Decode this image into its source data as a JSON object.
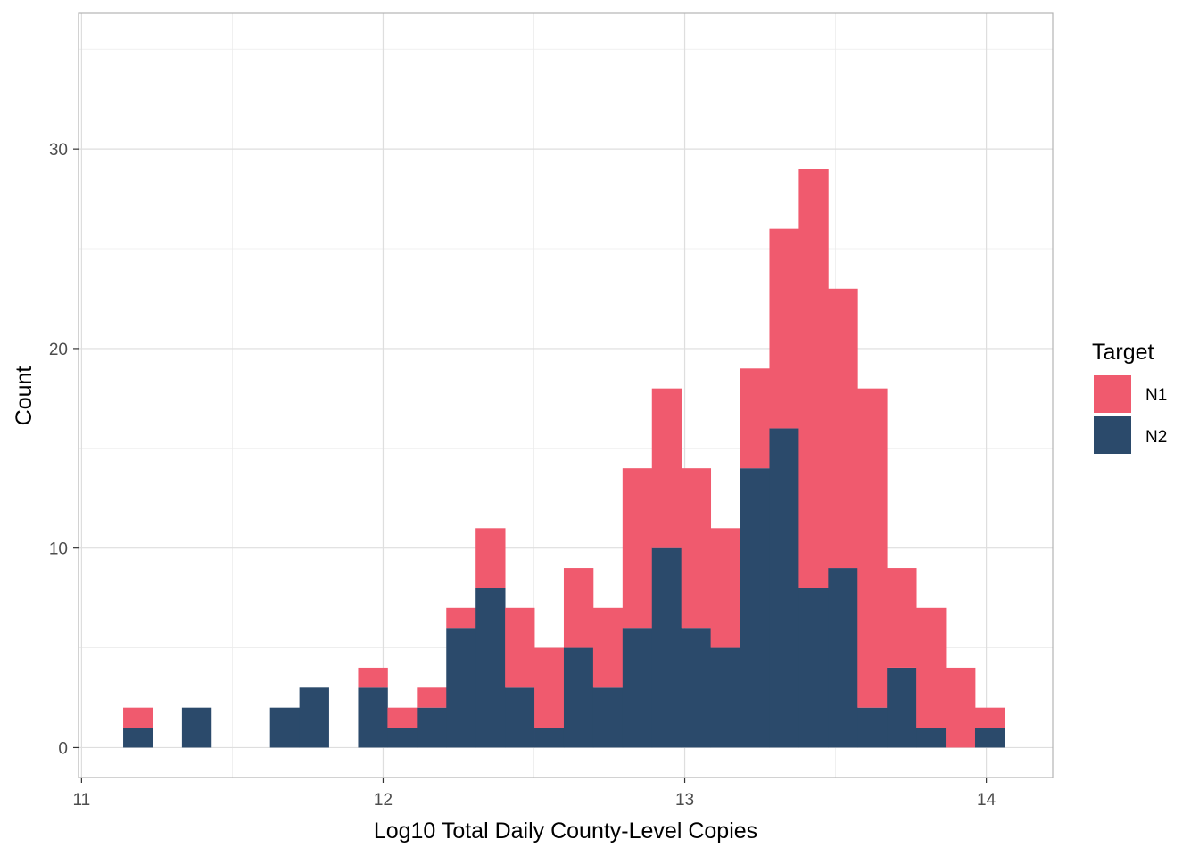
{
  "chart_data": {
    "type": "bar",
    "subtype": "stacked-histogram",
    "xlabel": "Log10 Total Daily County-Level Copies",
    "ylabel": "Count",
    "xlim": [
      10.99,
      14.22
    ],
    "ylim": [
      -1.5,
      36.8
    ],
    "x_ticks": [
      11,
      12,
      13,
      14
    ],
    "y_ticks": [
      0,
      10,
      20,
      30
    ],
    "grid": true,
    "bin_width": 0.0974,
    "bin_start": 11.138,
    "legend": {
      "title": "Target",
      "position": "right",
      "entries": [
        {
          "label": "N1",
          "color": "#F05A6E"
        },
        {
          "label": "N2",
          "color": "#2B4A6B"
        }
      ]
    },
    "series": [
      {
        "name": "N1",
        "color": "#F05A6E",
        "values": [
          1,
          0,
          0,
          0,
          0,
          0,
          0,
          0,
          1,
          1,
          1,
          1,
          3,
          4,
          4,
          4,
          4,
          8,
          8,
          8,
          6,
          5,
          10,
          21,
          14,
          16,
          5,
          6,
          4,
          1,
          0,
          0
        ]
      },
      {
        "name": "N2",
        "color": "#2B4A6B",
        "values": [
          1,
          0,
          2,
          0,
          0,
          2,
          3,
          0,
          3,
          1,
          2,
          6,
          8,
          3,
          1,
          5,
          3,
          6,
          10,
          6,
          5,
          14,
          16,
          8,
          9,
          2,
          4,
          1,
          0,
          1
        ]
      }
    ]
  }
}
